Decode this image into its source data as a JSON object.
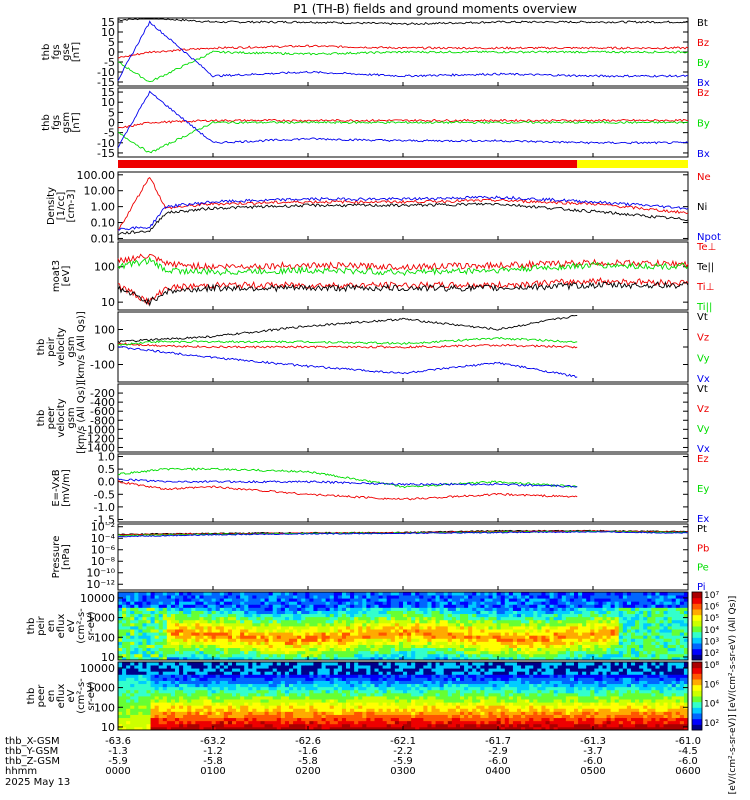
{
  "title": "P1 (TH-B) fields and ground moments overview",
  "colors": {
    "black": "#000000",
    "red": "#ee0000",
    "green": "#00dd00",
    "blue": "#0000ee",
    "status_red": "#ee0000",
    "status_yellow": "#ffff00"
  },
  "panels": [
    {
      "id": "fgs-gse",
      "ylabel": [
        "thb",
        "fgs",
        "gse",
        "[nT]"
      ],
      "yticks": [
        "15",
        "10",
        "5",
        "0",
        "-5",
        "-10",
        "-15"
      ],
      "ylim": [
        -17,
        17
      ],
      "legend": [
        {
          "text": "Bt",
          "color": "black"
        },
        {
          "text": "Bz",
          "color": "red"
        },
        {
          "text": "By",
          "color": "green"
        },
        {
          "text": "Bx",
          "color": "blue"
        }
      ]
    },
    {
      "id": "fgs-gsm",
      "ylabel": [
        "thb",
        "fgs",
        "gsm",
        "[nT]"
      ],
      "yticks": [
        "15",
        "10",
        "5",
        "0",
        "-5",
        "-10",
        "-15"
      ],
      "ylim": [
        -17,
        17
      ],
      "legend": [
        {
          "text": "Bz",
          "color": "red"
        },
        {
          "text": "By",
          "color": "green"
        },
        {
          "text": "Bx",
          "color": "blue"
        }
      ]
    },
    {
      "id": "density",
      "ylabel": [
        "Density",
        "[1/cc]",
        "[cm-3]"
      ],
      "yticks": [
        "100.00",
        "10.00",
        "1.00",
        "0.10",
        "0.01"
      ],
      "scale": "log",
      "ylim": [
        0.008,
        150
      ],
      "legend": [
        {
          "text": "Ne",
          "color": "red"
        },
        {
          "text": "Ni",
          "color": "black"
        },
        {
          "text": "Npot",
          "color": "blue"
        }
      ]
    },
    {
      "id": "temperature",
      "ylabel": [
        "moat3",
        "[eV]"
      ],
      "yticks": [
        "100",
        "10"
      ],
      "scale": "log",
      "ylim": [
        6,
        500
      ],
      "legend": [
        {
          "text": "Te⊥",
          "color": "red"
        },
        {
          "text": "Te||",
          "color": "black"
        },
        {
          "text": "Ti⊥",
          "color": "red"
        },
        {
          "text": "Ti||",
          "color": "green"
        }
      ]
    },
    {
      "id": "peir-velocity",
      "ylabel": [
        "thb",
        "peir",
        "velocity",
        "gsm",
        "[km/s (All Qs)]"
      ],
      "yticks": [
        "100",
        "0",
        "-100"
      ],
      "ylim": [
        -200,
        200
      ],
      "legend": [
        {
          "text": "Vt",
          "color": "black"
        },
        {
          "text": "Vz",
          "color": "red"
        },
        {
          "text": "Vy",
          "color": "green"
        },
        {
          "text": "Vx",
          "color": "blue"
        }
      ]
    },
    {
      "id": "peer-velocity",
      "ylabel": [
        "thb",
        "peer",
        "velocity",
        "gsm",
        "[km/s (All Qs)]"
      ],
      "yticks": [
        "-200",
        "-400",
        "-600",
        "-800",
        "-1000",
        "-1200",
        "-1400"
      ],
      "ylim": [
        -1500,
        0
      ],
      "legend": [
        {
          "text": "Vt",
          "color": "black"
        },
        {
          "text": "Vz",
          "color": "red"
        },
        {
          "text": "Vy",
          "color": "green"
        },
        {
          "text": "Vx",
          "color": "blue"
        }
      ]
    },
    {
      "id": "efield",
      "ylabel": [
        "E=-VxB",
        "[mV/m]"
      ],
      "yticks": [
        "1.0",
        "0.5",
        "0.0",
        "-0.5",
        "-1.0",
        "-1.5"
      ],
      "ylim": [
        -1.6,
        1.1
      ],
      "legend": [
        {
          "text": "Ez",
          "color": "red"
        },
        {
          "text": "Ey",
          "color": "green"
        },
        {
          "text": "Ex",
          "color": "blue"
        }
      ]
    },
    {
      "id": "pressure",
      "ylabel": [
        "Pressure",
        "[nPa]"
      ],
      "yticks": [
        "10⁻²",
        "10⁻⁴",
        "10⁻⁶",
        "10⁻⁸",
        "10⁻¹⁰",
        "10⁻¹²"
      ],
      "scale": "log",
      "ylim": [
        1e-13,
        0.03
      ],
      "legend": [
        {
          "text": "Pt",
          "color": "black"
        },
        {
          "text": "Pb",
          "color": "red"
        },
        {
          "text": "Pe",
          "color": "green"
        },
        {
          "text": "Pi",
          "color": "blue"
        }
      ]
    },
    {
      "id": "peir-spec",
      "ylabel": [
        "thb",
        "peir",
        "en",
        "eflux",
        "eV",
        "(cm²-s-",
        "sr-eV)"
      ],
      "yticks": [
        "10000",
        "1000",
        "100",
        "10"
      ],
      "scale": "log",
      "ylim": [
        7,
        20000
      ]
    },
    {
      "id": "peer-spec",
      "ylabel": [
        "thb",
        "peer",
        "en",
        "eflux",
        "eV",
        "(cm²-s-",
        "sr-eV)"
      ],
      "yticks": [
        "10000",
        "1000",
        "100",
        "10"
      ],
      "scale": "log",
      "ylim": [
        7,
        20000
      ]
    }
  ],
  "colorbar_ticks": [
    "10⁷",
    "10⁶",
    "10⁵",
    "10⁴",
    "10³",
    "10²"
  ],
  "colorbar_ticks_2": [
    "10⁸",
    "10⁶",
    "10⁴",
    "10²"
  ],
  "colorbar_label": "[eV/(cm²-s-sr-eV)] [eV/(cm²-s-sr-eV) (All Qs)]",
  "x_axis": {
    "rows": [
      {
        "label": "thb_X-GSM",
        "values": [
          "-63.6",
          "-63.2",
          "-62.6",
          "-62.1",
          "-61.7",
          "-61.3",
          "-61.0"
        ]
      },
      {
        "label": "thb_Y-GSM",
        "values": [
          "-1.3",
          "-1.2",
          "-1.6",
          "-2.2",
          "-2.9",
          "-3.7",
          "-4.5"
        ]
      },
      {
        "label": "thb_Z-GSM",
        "values": [
          "-5.9",
          "-5.8",
          "-5.8",
          "-5.9",
          "-6.0",
          "-6.0",
          "-6.0"
        ]
      },
      {
        "label": "hhmm",
        "values": [
          "0000",
          "0100",
          "0200",
          "0300",
          "0400",
          "0500",
          "0600"
        ]
      }
    ],
    "date": "2025 May 13"
  },
  "chart_data": {
    "type": "line",
    "title": "P1 (TH-B) fields and ground moments overview",
    "x_unit": "hhmm",
    "xlim": [
      "0000",
      "0600"
    ],
    "x_ticks": [
      "0000",
      "0100",
      "0200",
      "0300",
      "0400",
      "0500",
      "0600"
    ],
    "status_bar": [
      {
        "from": "0000",
        "to": "0450",
        "color": "red"
      },
      {
        "from": "0450",
        "to": "0600",
        "color": "yellow"
      }
    ],
    "series": [
      {
        "panel": "fgs-gse",
        "name": "Bt",
        "x": [
          "0000",
          "0020",
          "0100",
          "0200",
          "0300",
          "0400",
          "0500",
          "0600"
        ],
        "values": [
          16,
          17,
          15,
          15,
          14,
          15,
          15,
          15
        ]
      },
      {
        "panel": "fgs-gse",
        "name": "Bz",
        "x": [
          "0000",
          "0020",
          "0100",
          "0200",
          "0300",
          "0400",
          "0500",
          "0600"
        ],
        "values": [
          -3,
          0,
          2,
          3,
          2,
          2,
          2,
          2
        ]
      },
      {
        "panel": "fgs-gse",
        "name": "By",
        "x": [
          "0000",
          "0020",
          "0100",
          "0200",
          "0300",
          "0400",
          "0500",
          "0600"
        ],
        "values": [
          -5,
          -15,
          0,
          -1,
          0,
          0,
          0,
          0
        ]
      },
      {
        "panel": "fgs-gse",
        "name": "Bx",
        "x": [
          "0000",
          "0020",
          "0100",
          "0200",
          "0300",
          "0400",
          "0500",
          "0600"
        ],
        "values": [
          -14,
          15,
          -12,
          -10,
          -12,
          -11,
          -12,
          -12
        ]
      },
      {
        "panel": "fgs-gsm",
        "name": "Bz",
        "x": [
          "0000",
          "0020",
          "0100",
          "0200",
          "0300",
          "0400",
          "0500",
          "0600"
        ],
        "values": [
          -3,
          0,
          1,
          1,
          1,
          1,
          1,
          1
        ]
      },
      {
        "panel": "fgs-gsm",
        "name": "By",
        "x": [
          "0000",
          "0020",
          "0100",
          "0200",
          "0300",
          "0400",
          "0500",
          "0600"
        ],
        "values": [
          -5,
          -15,
          0,
          0,
          0,
          0,
          0,
          0
        ]
      },
      {
        "panel": "fgs-gsm",
        "name": "Bx",
        "x": [
          "0000",
          "0020",
          "0100",
          "0200",
          "0300",
          "0400",
          "0500",
          "0600"
        ],
        "values": [
          -12,
          15,
          -10,
          -8,
          -9,
          -9,
          -10,
          -10
        ]
      },
      {
        "panel": "density",
        "name": "Ne",
        "x": [
          "0000",
          "0020",
          "0030",
          "0100",
          "0200",
          "0300",
          "0400",
          "0500",
          "0600"
        ],
        "values": [
          0.03,
          80,
          0.8,
          1.5,
          2,
          2,
          2.5,
          1.5,
          0.4
        ]
      },
      {
        "panel": "density",
        "name": "Ni",
        "x": [
          "0000",
          "0020",
          "0030",
          "0100",
          "0200",
          "0300",
          "0400",
          "0500",
          "0600"
        ],
        "values": [
          0.02,
          0.03,
          0.4,
          0.8,
          1.2,
          1.2,
          1.5,
          0.5,
          0.15
        ]
      },
      {
        "panel": "density",
        "name": "Npot",
        "x": [
          "0000",
          "0020",
          "0030",
          "0100",
          "0200",
          "0300",
          "0400",
          "0500",
          "0600"
        ],
        "values": [
          0.04,
          0.05,
          1,
          2,
          3,
          3,
          4,
          2,
          0.8
        ]
      },
      {
        "panel": "temperature",
        "name": "Te⊥",
        "x": [
          "0000",
          "0020",
          "0030",
          "0100",
          "0200",
          "0300",
          "0400",
          "0500",
          "0600"
        ],
        "values": [
          30,
          10,
          25,
          30,
          30,
          30,
          30,
          40,
          35
        ]
      },
      {
        "panel": "temperature",
        "name": "Te||",
        "x": [
          "0000",
          "0020",
          "0030",
          "0100",
          "0200",
          "0300",
          "0400",
          "0500",
          "0600"
        ],
        "values": [
          25,
          10,
          20,
          25,
          25,
          25,
          25,
          30,
          30
        ]
      },
      {
        "panel": "temperature",
        "name": "Ti⊥",
        "x": [
          "0000",
          "0020",
          "0030",
          "0100",
          "0200",
          "0300",
          "0400",
          "0500",
          "0600"
        ],
        "values": [
          150,
          200,
          120,
          100,
          110,
          100,
          110,
          130,
          120
        ]
      },
      {
        "panel": "temperature",
        "name": "Ti||",
        "x": [
          "0000",
          "0020",
          "0030",
          "0100",
          "0200",
          "0300",
          "0400",
          "0500",
          "0600"
        ],
        "values": [
          100,
          150,
          80,
          70,
          80,
          70,
          80,
          110,
          100
        ]
      },
      {
        "panel": "peir-velocity",
        "name": "Vt",
        "x": [
          "0000",
          "0020",
          "0100",
          "0200",
          "0300",
          "0400",
          "0450"
        ],
        "values": [
          30,
          40,
          60,
          120,
          160,
          100,
          180
        ]
      },
      {
        "panel": "peir-velocity",
        "name": "Vz",
        "x": [
          "0000",
          "0020",
          "0100",
          "0200",
          "0300",
          "0400",
          "0450"
        ],
        "values": [
          20,
          10,
          0,
          0,
          0,
          10,
          0
        ]
      },
      {
        "panel": "peir-velocity",
        "name": "Vy",
        "x": [
          "0000",
          "0020",
          "0100",
          "0200",
          "0300",
          "0400",
          "0450"
        ],
        "values": [
          10,
          30,
          30,
          30,
          20,
          50,
          30
        ]
      },
      {
        "panel": "peir-velocity",
        "name": "Vx",
        "x": [
          "0000",
          "0020",
          "0100",
          "0200",
          "0300",
          "0400",
          "0450"
        ],
        "values": [
          0,
          -20,
          -60,
          -110,
          -150,
          -90,
          -170
        ]
      },
      {
        "panel": "efield",
        "name": "Ez",
        "x": [
          "0000",
          "0030",
          "0100",
          "0200",
          "0300",
          "0400",
          "0450"
        ],
        "values": [
          0,
          -0.3,
          -0.2,
          -0.5,
          -0.7,
          -0.5,
          -0.6
        ]
      },
      {
        "panel": "efield",
        "name": "Ey",
        "x": [
          "0000",
          "0030",
          "0100",
          "0200",
          "0300",
          "0400",
          "0450"
        ],
        "values": [
          0.3,
          0.5,
          0.5,
          0.4,
          -0.2,
          0.0,
          -0.2
        ]
      },
      {
        "panel": "efield",
        "name": "Ex",
        "x": [
          "0000",
          "0030",
          "0100",
          "0200",
          "0300",
          "0400",
          "0450"
        ],
        "values": [
          0.1,
          0.0,
          0.0,
          0.0,
          -0.1,
          -0.1,
          -0.2
        ]
      },
      {
        "panel": "pressure",
        "name": "Pt",
        "x": [
          "0000",
          "0100",
          "0200",
          "0300",
          "0400",
          "0500",
          "0600"
        ],
        "values": [
          0.0005,
          0.0007,
          0.0009,
          0.001,
          0.002,
          0.002,
          0.0015
        ]
      },
      {
        "panel": "pressure",
        "name": "Pb",
        "x": [
          "0000",
          "0100",
          "0200",
          "0300",
          "0400",
          "0500",
          "0600"
        ],
        "values": [
          0.0004,
          0.0006,
          0.0008,
          0.0009,
          0.0015,
          0.0018,
          0.0012
        ]
      },
      {
        "panel": "pressure",
        "name": "Pe",
        "x": [
          "0000",
          "0100",
          "0200",
          "0300",
          "0400",
          "0500",
          "0600"
        ],
        "values": [
          0.0003,
          0.0005,
          0.0007,
          0.0008,
          0.0012,
          0.0015,
          0.001
        ]
      },
      {
        "panel": "pressure",
        "name": "Pi",
        "x": [
          "0000",
          "0100",
          "0200",
          "0300",
          "0400",
          "0500",
          "0600"
        ],
        "values": [
          0.0002,
          0.0004,
          0.0006,
          0.0007,
          0.001,
          0.0013,
          0.0008
        ]
      }
    ],
    "spectrograms": [
      {
        "panel": "peir-spec",
        "type": "heatmap",
        "zlim": [
          "10²",
          "10⁷"
        ],
        "peak_energy_eV": 150
      },
      {
        "panel": "peer-spec",
        "type": "heatmap",
        "zlim": [
          "10²",
          "10⁸"
        ],
        "peak_energy_eV": 20
      }
    ]
  }
}
